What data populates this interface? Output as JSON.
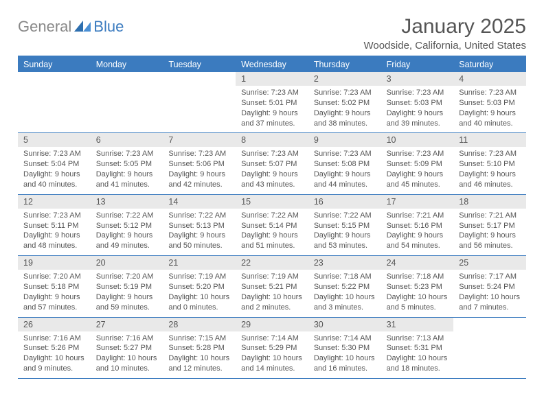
{
  "logo": {
    "general": "General",
    "blue": "Blue"
  },
  "title": "January 2025",
  "location": "Woodside, California, United States",
  "colors": {
    "accent": "#3b7bbf",
    "header_bg": "#3b7bbf",
    "daynum_bg": "#e9e9e9",
    "text": "#555555",
    "border": "#3b7bbf"
  },
  "day_names": [
    "Sunday",
    "Monday",
    "Tuesday",
    "Wednesday",
    "Thursday",
    "Friday",
    "Saturday"
  ],
  "weeks": [
    [
      null,
      null,
      null,
      {
        "n": "1",
        "sr": "7:23 AM",
        "ss": "5:01 PM",
        "dl": "9 hours and 37 minutes."
      },
      {
        "n": "2",
        "sr": "7:23 AM",
        "ss": "5:02 PM",
        "dl": "9 hours and 38 minutes."
      },
      {
        "n": "3",
        "sr": "7:23 AM",
        "ss": "5:03 PM",
        "dl": "9 hours and 39 minutes."
      },
      {
        "n": "4",
        "sr": "7:23 AM",
        "ss": "5:03 PM",
        "dl": "9 hours and 40 minutes."
      }
    ],
    [
      {
        "n": "5",
        "sr": "7:23 AM",
        "ss": "5:04 PM",
        "dl": "9 hours and 40 minutes."
      },
      {
        "n": "6",
        "sr": "7:23 AM",
        "ss": "5:05 PM",
        "dl": "9 hours and 41 minutes."
      },
      {
        "n": "7",
        "sr": "7:23 AM",
        "ss": "5:06 PM",
        "dl": "9 hours and 42 minutes."
      },
      {
        "n": "8",
        "sr": "7:23 AM",
        "ss": "5:07 PM",
        "dl": "9 hours and 43 minutes."
      },
      {
        "n": "9",
        "sr": "7:23 AM",
        "ss": "5:08 PM",
        "dl": "9 hours and 44 minutes."
      },
      {
        "n": "10",
        "sr": "7:23 AM",
        "ss": "5:09 PM",
        "dl": "9 hours and 45 minutes."
      },
      {
        "n": "11",
        "sr": "7:23 AM",
        "ss": "5:10 PM",
        "dl": "9 hours and 46 minutes."
      }
    ],
    [
      {
        "n": "12",
        "sr": "7:23 AM",
        "ss": "5:11 PM",
        "dl": "9 hours and 48 minutes."
      },
      {
        "n": "13",
        "sr": "7:22 AM",
        "ss": "5:12 PM",
        "dl": "9 hours and 49 minutes."
      },
      {
        "n": "14",
        "sr": "7:22 AM",
        "ss": "5:13 PM",
        "dl": "9 hours and 50 minutes."
      },
      {
        "n": "15",
        "sr": "7:22 AM",
        "ss": "5:14 PM",
        "dl": "9 hours and 51 minutes."
      },
      {
        "n": "16",
        "sr": "7:22 AM",
        "ss": "5:15 PM",
        "dl": "9 hours and 53 minutes."
      },
      {
        "n": "17",
        "sr": "7:21 AM",
        "ss": "5:16 PM",
        "dl": "9 hours and 54 minutes."
      },
      {
        "n": "18",
        "sr": "7:21 AM",
        "ss": "5:17 PM",
        "dl": "9 hours and 56 minutes."
      }
    ],
    [
      {
        "n": "19",
        "sr": "7:20 AM",
        "ss": "5:18 PM",
        "dl": "9 hours and 57 minutes."
      },
      {
        "n": "20",
        "sr": "7:20 AM",
        "ss": "5:19 PM",
        "dl": "9 hours and 59 minutes."
      },
      {
        "n": "21",
        "sr": "7:19 AM",
        "ss": "5:20 PM",
        "dl": "10 hours and 0 minutes."
      },
      {
        "n": "22",
        "sr": "7:19 AM",
        "ss": "5:21 PM",
        "dl": "10 hours and 2 minutes."
      },
      {
        "n": "23",
        "sr": "7:18 AM",
        "ss": "5:22 PM",
        "dl": "10 hours and 3 minutes."
      },
      {
        "n": "24",
        "sr": "7:18 AM",
        "ss": "5:23 PM",
        "dl": "10 hours and 5 minutes."
      },
      {
        "n": "25",
        "sr": "7:17 AM",
        "ss": "5:24 PM",
        "dl": "10 hours and 7 minutes."
      }
    ],
    [
      {
        "n": "26",
        "sr": "7:16 AM",
        "ss": "5:26 PM",
        "dl": "10 hours and 9 minutes."
      },
      {
        "n": "27",
        "sr": "7:16 AM",
        "ss": "5:27 PM",
        "dl": "10 hours and 10 minutes."
      },
      {
        "n": "28",
        "sr": "7:15 AM",
        "ss": "5:28 PM",
        "dl": "10 hours and 12 minutes."
      },
      {
        "n": "29",
        "sr": "7:14 AM",
        "ss": "5:29 PM",
        "dl": "10 hours and 14 minutes."
      },
      {
        "n": "30",
        "sr": "7:14 AM",
        "ss": "5:30 PM",
        "dl": "10 hours and 16 minutes."
      },
      {
        "n": "31",
        "sr": "7:13 AM",
        "ss": "5:31 PM",
        "dl": "10 hours and 18 minutes."
      },
      null
    ]
  ],
  "labels": {
    "sunrise": "Sunrise:",
    "sunset": "Sunset:",
    "daylight": "Daylight:"
  }
}
